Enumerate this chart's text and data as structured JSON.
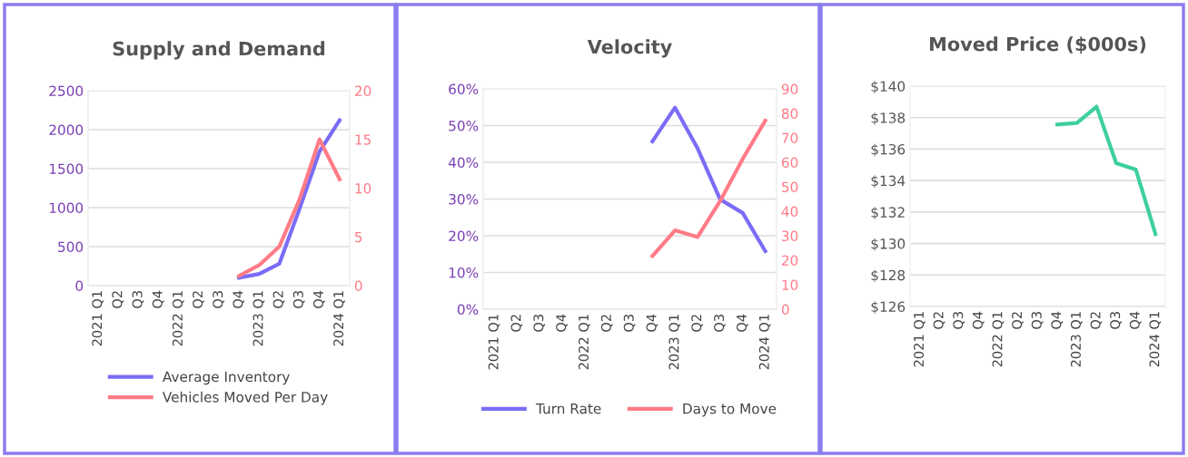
{
  "chart_data": [
    {
      "type": "line",
      "title": "Supply and Demand",
      "categories": [
        "2021 Q1",
        "Q2",
        "Q3",
        "Q4",
        "2022 Q1",
        "Q2",
        "Q3",
        "Q4",
        "2023 Q1",
        "Q2",
        "Q3",
        "Q4",
        "2024 Q1"
      ],
      "series": [
        {
          "name": "Average Inventory",
          "color": "#7b6cf6",
          "values": [
            null,
            null,
            null,
            null,
            null,
            null,
            null,
            100,
            150,
            280,
            980,
            1720,
            2120
          ]
        },
        {
          "name": "Vehicles Moved Per Day",
          "color": "#ff7b87",
          "axis": "y2",
          "values": [
            null,
            null,
            null,
            null,
            null,
            null,
            null,
            1.0,
            2.1,
            4.0,
            8.8,
            15.0,
            10.9
          ]
        }
      ],
      "ylim": [
        0,
        2500
      ],
      "yticks": [
        0,
        500,
        1000,
        1500,
        2000,
        2500
      ],
      "y2lim": [
        0,
        20
      ],
      "y2ticks": [
        0,
        5,
        10,
        15,
        20
      ],
      "grid": "y",
      "legend": "bottom",
      "line_style": "solid",
      "marker": "none"
    },
    {
      "type": "line",
      "title": "Velocity",
      "categories": [
        "2021 Q1",
        "Q2",
        "Q3",
        "Q4",
        "2022 Q1",
        "Q2",
        "Q3",
        "Q4",
        "2023 Q1",
        "Q2",
        "Q3",
        "Q4",
        "2024 Q1"
      ],
      "series": [
        {
          "name": "Turn Rate",
          "color": "#7b6cf6",
          "values": [
            null,
            null,
            null,
            null,
            null,
            null,
            null,
            45.7,
            54.9,
            43.8,
            29.9,
            26.2,
            15.8
          ]
        },
        {
          "name": "Days to Move",
          "color": "#ff7b87",
          "axis": "y2",
          "values": [
            null,
            null,
            null,
            null,
            null,
            null,
            null,
            21.7,
            32.2,
            29.5,
            44.2,
            61.4,
            77
          ]
        }
      ],
      "ylim": [
        0,
        60
      ],
      "yticks": [
        {
          "value": 0,
          "label": "0%"
        },
        {
          "value": 10,
          "label": "10%"
        },
        {
          "value": 20,
          "label": "20%"
        },
        {
          "value": 30,
          "label": "30%"
        },
        {
          "value": 40,
          "label": "40%"
        },
        {
          "value": 50,
          "label": "50%"
        },
        {
          "value": 60,
          "label": "60%"
        }
      ],
      "y2lim": [
        0,
        90
      ],
      "y2ticks": [
        0,
        10,
        20,
        30,
        40,
        50,
        60,
        70,
        80,
        90
      ],
      "grid": "y",
      "legend": "bottom",
      "line_style": "solid",
      "marker": "none"
    },
    {
      "type": "line",
      "title": "Moved Price ($000s)",
      "categories": [
        "2021 Q1",
        "Q2",
        "Q3",
        "Q4",
        "2022 Q1",
        "Q2",
        "Q3",
        "Q4",
        "2023 Q1",
        "Q2",
        "Q3",
        "Q4",
        "2024 Q1"
      ],
      "series": [
        {
          "color": "#3ecf9f",
          "values": [
            null,
            null,
            null,
            null,
            null,
            null,
            null,
            137.56,
            137.66,
            138.7,
            135.1,
            134.7,
            130.6
          ]
        }
      ],
      "ylim": [
        126,
        140
      ],
      "yticks": [
        {
          "value": 126,
          "label": "$126"
        },
        {
          "value": 128,
          "label": "$128"
        },
        {
          "value": 130,
          "label": "$130"
        },
        {
          "value": 132,
          "label": "$132"
        },
        {
          "value": 134,
          "label": "$134"
        },
        {
          "value": 136,
          "label": "$136"
        },
        {
          "value": 138,
          "label": "$138"
        },
        {
          "value": 140,
          "label": "$140"
        }
      ],
      "grid": "y",
      "line_style": "solid",
      "marker": "none"
    }
  ]
}
